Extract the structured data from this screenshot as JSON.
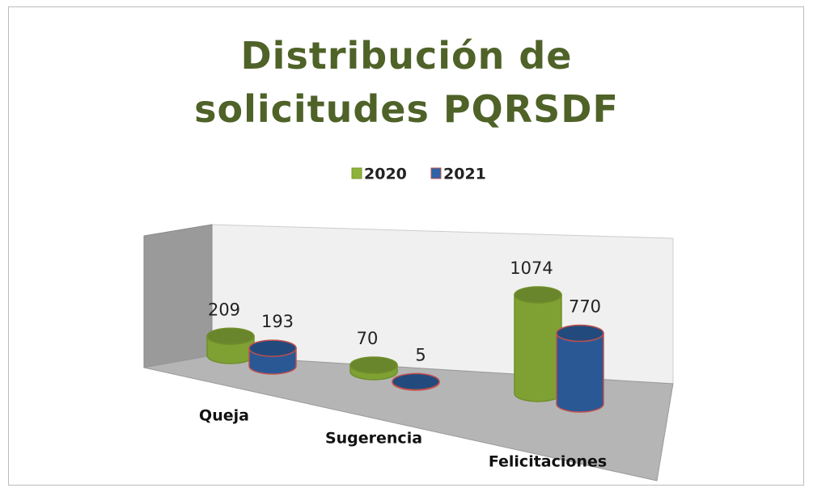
{
  "chart_data": {
    "type": "bar",
    "title": "Distribución de solicitudes PQRSDF",
    "categories": [
      "Queja",
      "Sugerencia",
      "Felicitaciones"
    ],
    "series": [
      {
        "name": "2020",
        "color": "#8db33a",
        "values": [
          209,
          70,
          1074
        ]
      },
      {
        "name": "2021",
        "color": "#2f62a6",
        "values": [
          193,
          5,
          770
        ]
      }
    ],
    "legend": "top"
  }
}
